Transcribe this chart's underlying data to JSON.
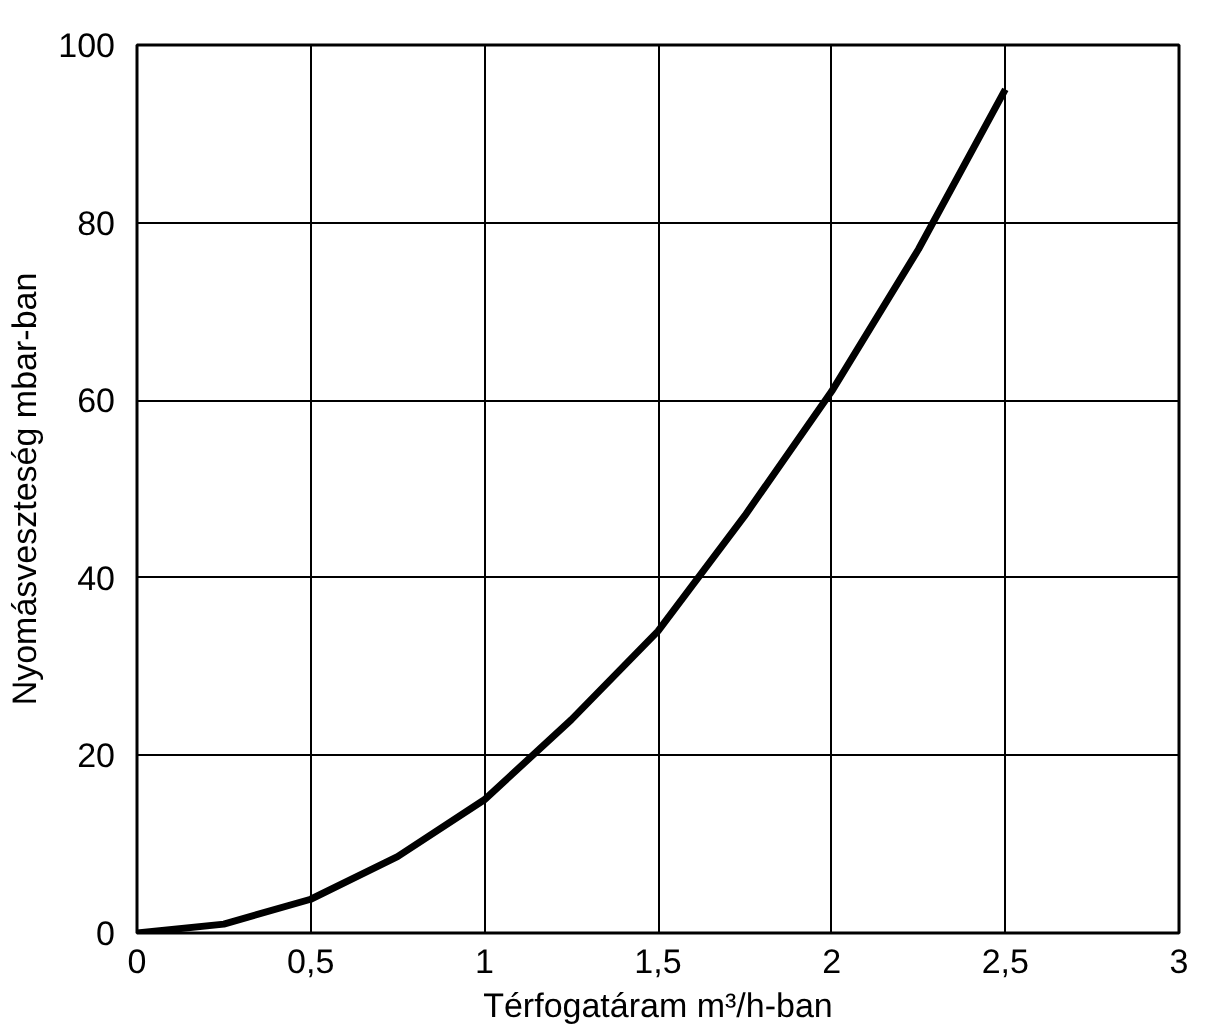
{
  "chart_data": {
    "type": "line",
    "xlabel": "Térfogatáram m³/h-ban",
    "ylabel": "Nyomásveszteség mbar-ban",
    "x": [
      0,
      0.25,
      0.5,
      0.75,
      1,
      1.25,
      1.5,
      1.75,
      2,
      2.25,
      2.5
    ],
    "series": [
      {
        "color": "#000000",
        "values": [
          0,
          1,
          3.8,
          8.6,
          15,
          24,
          34,
          47,
          61,
          77,
          95
        ]
      }
    ],
    "xlim": [
      0,
      3
    ],
    "ylim": [
      0,
      100
    ],
    "xticks": [
      0,
      {
        "value": 0.5,
        "label": "0,5"
      },
      1,
      {
        "value": 1.5,
        "label": "1,5"
      },
      2,
      {
        "value": 2.5,
        "label": "2,5"
      },
      3
    ],
    "yticks": [
      0,
      20,
      40,
      60,
      80,
      100
    ],
    "grid": true,
    "marker": "none",
    "line_style": "solid"
  }
}
